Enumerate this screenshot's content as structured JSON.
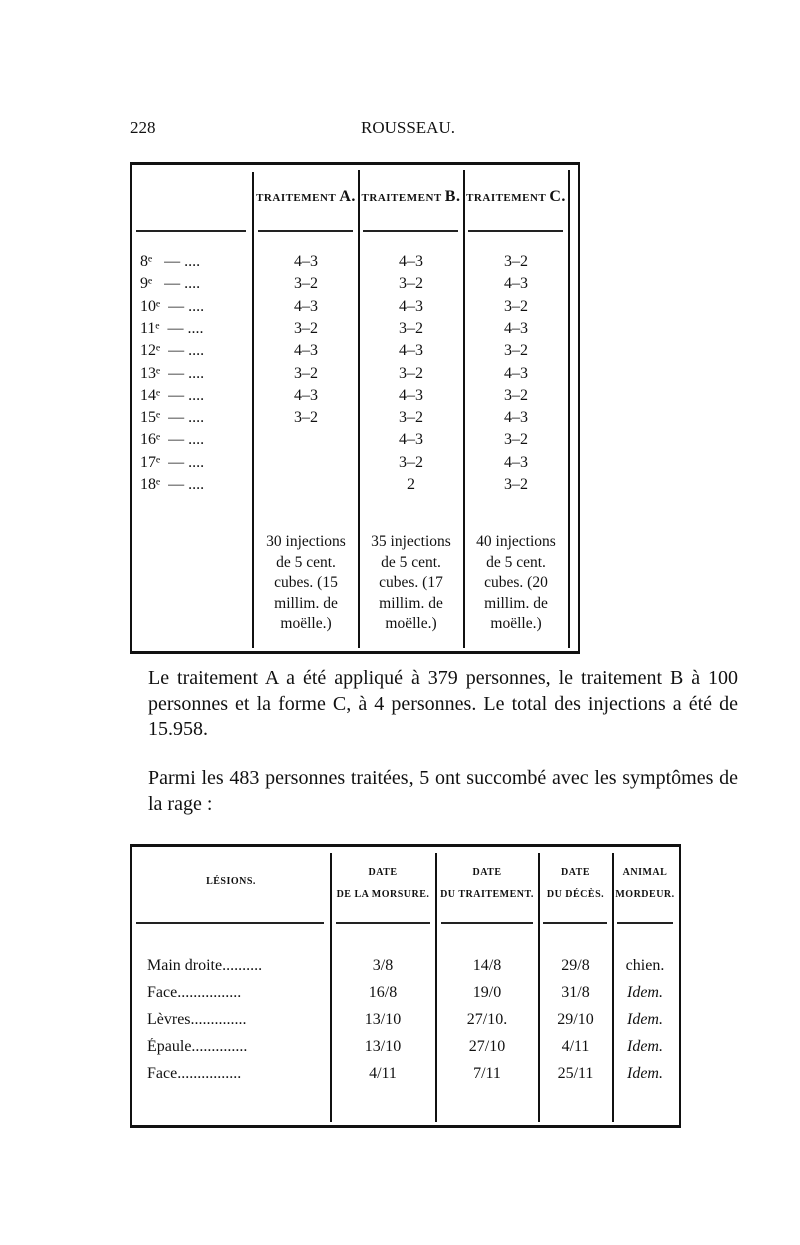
{
  "header": {
    "page_number": "228",
    "running_title": "ROUSSEAU."
  },
  "table1": {
    "columns": [
      {
        "prefix": "TRAITEMENT",
        "letter": "A."
      },
      {
        "prefix": "TRAITEMENT",
        "letter": "B."
      },
      {
        "prefix": "TRAITEMENT",
        "letter": "C."
      }
    ],
    "rows": [
      {
        "label": "8ᵉ   — ....",
        "a": "4–3",
        "b": "4–3",
        "c": "3–2"
      },
      {
        "label": "9ᵉ   — ....",
        "a": "3–2",
        "b": "3–2",
        "c": "4–3"
      },
      {
        "label": "10ᵉ  — ....",
        "a": "4–3",
        "b": "4–3",
        "c": "3–2"
      },
      {
        "label": "11ᵉ  — ....",
        "a": "3–2",
        "b": "3–2",
        "c": "4–3"
      },
      {
        "label": "12ᵉ  — ....",
        "a": "4–3",
        "b": "4–3",
        "c": "3–2"
      },
      {
        "label": "13ᵉ  — ....",
        "a": "3–2",
        "b": "3–2",
        "c": "4–3"
      },
      {
        "label": "14ᵉ  — ....",
        "a": "4–3",
        "b": "4–3",
        "c": "3–2"
      },
      {
        "label": "15ᵉ  — ....",
        "a": "3–2",
        "b": "3–2",
        "c": "4–3"
      },
      {
        "label": "16ᵉ  — ....",
        "a": "",
        "b": "4–3",
        "c": "3–2"
      },
      {
        "label": "17ᵉ  — ....",
        "a": "",
        "b": "3–2",
        "c": "4–3"
      },
      {
        "label": "18ᵉ  — ....",
        "a": "",
        "b": "2",
        "c": "3–2"
      }
    ],
    "notes": [
      [
        "30 injections",
        "de 5 cent.",
        "cubes. (15",
        "millim. de",
        "moëlle.)"
      ],
      [
        "35 injections",
        "de 5 cent.",
        "cubes. (17",
        "millim. de",
        "moëlle.)"
      ],
      [
        "40 injections",
        "de 5 cent.",
        "cubes. (20",
        "millim. de",
        "moëlle.)"
      ]
    ]
  },
  "paragraphs": [
    "Le traitement A a été appliqué à 379 personnes, le traitement B à 100 personnes et la forme C, à 4 personnes. Le total des injections a été de 15.958.",
    "Parmi les 483 personnes traitées, 5 ont succombé avec les symptômes de la rage :"
  ],
  "table2": {
    "headers": [
      {
        "line1": "LÉSIONS.",
        "line2": ""
      },
      {
        "line1": "DATE",
        "line2": "DE LA MORSURE."
      },
      {
        "line1": "DATE",
        "line2": "DU TRAITEMENT."
      },
      {
        "line1": "DATE",
        "line2": "DU DÉCÈS."
      },
      {
        "line1": "ANIMAL",
        "line2": "MORDEUR."
      }
    ],
    "rows": [
      {
        "lesion": "Main droite..........",
        "morsure": "3/8",
        "traitement": "14/8",
        "deces": "29/8",
        "animal": "chien."
      },
      {
        "lesion": "Face................",
        "morsure": "16/8",
        "traitement": "19/0",
        "deces": "31/8",
        "animal": "Idem."
      },
      {
        "lesion": "Lèvres..............",
        "morsure": "13/10",
        "traitement": "27/10.",
        "deces": "29/10",
        "animal": "Idem."
      },
      {
        "lesion": "Épaule..............",
        "morsure": "13/10",
        "traitement": "27/10",
        "deces": "4/11",
        "animal": "Idem."
      },
      {
        "lesion": "Face................",
        "morsure": "4/11",
        "traitement": "7/11",
        "deces": "25/11",
        "animal": "Idem."
      }
    ]
  }
}
